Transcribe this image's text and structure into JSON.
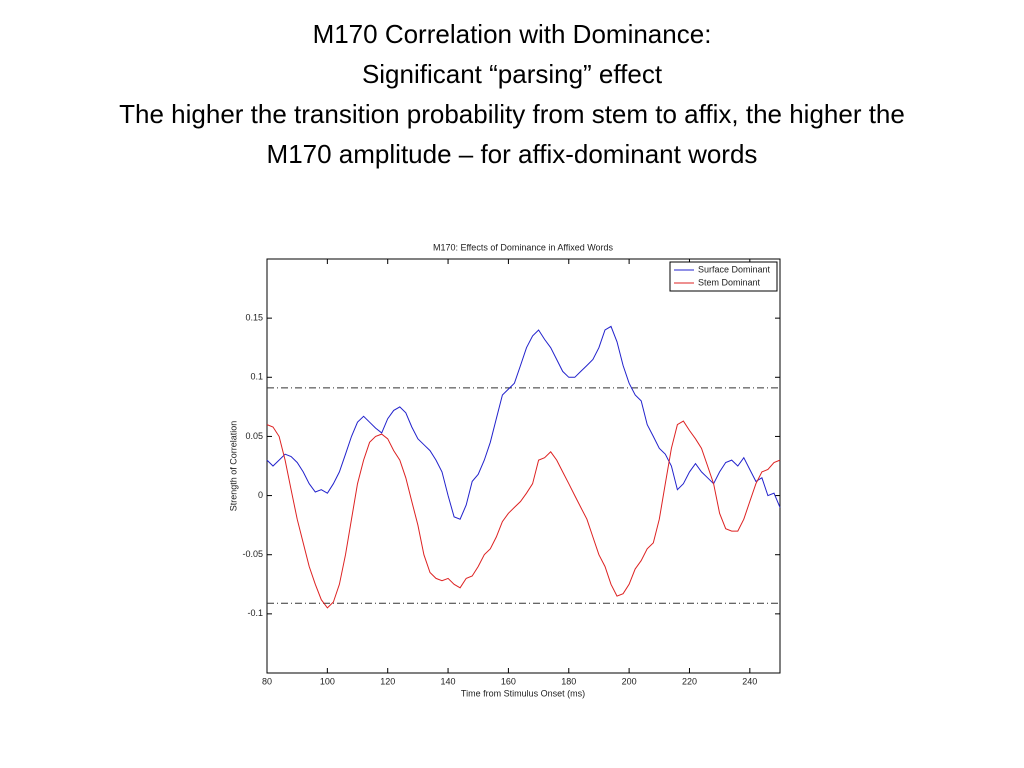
{
  "slide_title": [
    "M170 Correlation with Dominance:",
    "Significant “parsing” effect",
    "The higher the transition probability from stem to affix, the higher the",
    "M170 amplitude – for affix-dominant words"
  ],
  "chart_data": {
    "type": "line",
    "title": "M170: Effects of Dominance in Affixed Words",
    "x_label": "Time from Stimulus Onset (ms)",
    "y_label": "Strength of Correlation",
    "xlim": [
      80,
      250
    ],
    "ylim": [
      -0.15,
      0.2
    ],
    "xticks": [
      80,
      100,
      120,
      140,
      160,
      180,
      200,
      220,
      240
    ],
    "yticks": [
      -0.1,
      -0.05,
      0,
      0.05,
      0.1,
      0.15
    ],
    "thresholds": [
      0.091,
      -0.091
    ],
    "legend": "top-right",
    "x": [
      80,
      82,
      84,
      86,
      88,
      90,
      92,
      94,
      96,
      98,
      100,
      102,
      104,
      106,
      108,
      110,
      112,
      114,
      116,
      118,
      120,
      122,
      124,
      126,
      128,
      130,
      132,
      134,
      136,
      138,
      140,
      142,
      144,
      146,
      148,
      150,
      152,
      154,
      156,
      158,
      160,
      162,
      164,
      166,
      168,
      170,
      172,
      174,
      176,
      178,
      180,
      182,
      184,
      186,
      188,
      190,
      192,
      194,
      196,
      198,
      200,
      202,
      204,
      206,
      208,
      210,
      212,
      214,
      216,
      218,
      220,
      222,
      224,
      226,
      228,
      230,
      232,
      234,
      236,
      238,
      240,
      242,
      244,
      246,
      248,
      250
    ],
    "series": [
      {
        "name": "Surface Dominant",
        "color": "#2222cc",
        "values": [
          0.03,
          0.025,
          0.03,
          0.035,
          0.033,
          0.028,
          0.02,
          0.01,
          0.003,
          0.005,
          0.002,
          0.01,
          0.02,
          0.035,
          0.05,
          0.062,
          0.067,
          0.062,
          0.057,
          0.053,
          0.065,
          0.072,
          0.075,
          0.07,
          0.058,
          0.048,
          0.043,
          0.038,
          0.03,
          0.02,
          0.0,
          -0.018,
          -0.02,
          -0.008,
          0.012,
          0.018,
          0.03,
          0.045,
          0.065,
          0.085,
          0.09,
          0.095,
          0.11,
          0.125,
          0.135,
          0.14,
          0.132,
          0.125,
          0.115,
          0.105,
          0.1,
          0.1,
          0.105,
          0.11,
          0.115,
          0.125,
          0.14,
          0.143,
          0.13,
          0.11,
          0.095,
          0.085,
          0.08,
          0.06,
          0.05,
          0.04,
          0.035,
          0.025,
          0.005,
          0.01,
          0.02,
          0.027,
          0.02,
          0.015,
          0.01,
          0.02,
          0.028,
          0.03,
          0.025,
          0.032,
          0.022,
          0.012,
          0.015,
          0.0,
          0.002,
          -0.01
        ]
      },
      {
        "name": "Stem Dominant",
        "color": "#dd2222",
        "values": [
          0.06,
          0.058,
          0.05,
          0.03,
          0.005,
          -0.02,
          -0.04,
          -0.06,
          -0.075,
          -0.088,
          -0.095,
          -0.09,
          -0.075,
          -0.05,
          -0.02,
          0.01,
          0.03,
          0.045,
          0.05,
          0.052,
          0.048,
          0.038,
          0.03,
          0.015,
          -0.005,
          -0.025,
          -0.05,
          -0.065,
          -0.07,
          -0.072,
          -0.07,
          -0.075,
          -0.078,
          -0.07,
          -0.068,
          -0.06,
          -0.05,
          -0.045,
          -0.035,
          -0.022,
          -0.015,
          -0.01,
          -0.005,
          0.002,
          0.01,
          0.03,
          0.032,
          0.037,
          0.03,
          0.02,
          0.01,
          0.0,
          -0.01,
          -0.02,
          -0.035,
          -0.05,
          -0.06,
          -0.075,
          -0.085,
          -0.083,
          -0.075,
          -0.062,
          -0.055,
          -0.045,
          -0.04,
          -0.02,
          0.01,
          0.04,
          0.06,
          0.063,
          0.055,
          0.048,
          0.04,
          0.025,
          0.01,
          -0.015,
          -0.028,
          -0.03,
          -0.03,
          -0.02,
          -0.005,
          0.01,
          0.02,
          0.022,
          0.028,
          0.03
        ]
      }
    ]
  }
}
